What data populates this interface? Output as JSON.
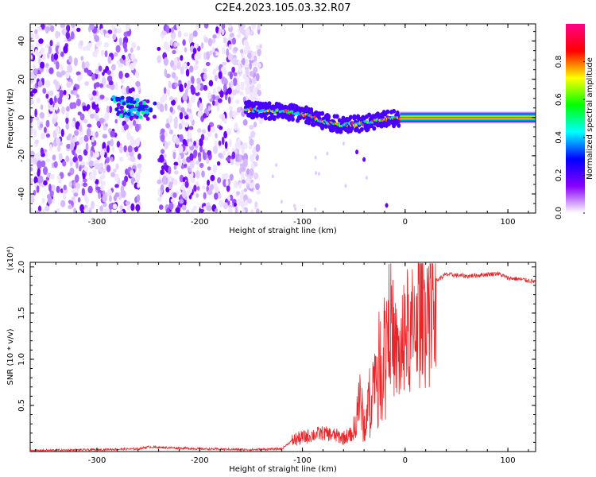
{
  "page_title": "C2E4.2023.105.03.32.R07",
  "chart_data": [
    {
      "type": "heatmap",
      "title": "C2E4.2023.105.03.32.R07",
      "xlabel": "Height of straight line (km)",
      "ylabel": "Frequency (Hz)",
      "xlim": [
        -365,
        127
      ],
      "ylim": [
        -50,
        49
      ],
      "x_ticks": [
        -300,
        -200,
        -100,
        0,
        100
      ],
      "y_ticks": [
        -40,
        -20,
        0,
        20,
        40
      ],
      "colorbar": {
        "label": "Normalized spectral amplitude",
        "range": [
          0,
          1
        ],
        "ticks": [
          "0.0",
          "0.2",
          "0.4",
          "0.6",
          "0.8"
        ],
        "colors": [
          "#ffffff",
          "#8800ff",
          "#0000ff",
          "#00ffff",
          "#00ff00",
          "#ffff00",
          "#ff0000",
          "#ff0088"
        ]
      },
      "signal_trace": [
        {
          "x": -280,
          "y": 6
        },
        {
          "x": -260,
          "y": 5
        },
        {
          "x": -245,
          "y": 3
        },
        {
          "x": -150,
          "y": 4
        },
        {
          "x": -120,
          "y": 3
        },
        {
          "x": -100,
          "y": 2
        },
        {
          "x": -80,
          "y": -2
        },
        {
          "x": -60,
          "y": -4
        },
        {
          "x": -40,
          "y": -3
        },
        {
          "x": -20,
          "y": -1
        },
        {
          "x": 0,
          "y": 0
        },
        {
          "x": 127,
          "y": 0
        }
      ]
    },
    {
      "type": "line",
      "xlabel": "Height of straight line (km)",
      "ylabel": "SNR (10 * v/v)",
      "y_multiplier": "(x10⁴)",
      "xlim": [
        -365,
        127
      ],
      "ylim": [
        0,
        2.05
      ],
      "x_ticks": [
        -300,
        -200,
        -100,
        0,
        100
      ],
      "y_ticks": [
        "0.5",
        "1.0",
        "1.5",
        "2.0"
      ],
      "series": [
        {
          "color": "#e8272a",
          "x": [
            -365,
            -300,
            -260,
            -250,
            -200,
            -150,
            -120,
            -110,
            -100,
            -90,
            -80,
            -70,
            -60,
            -50,
            -45,
            -40,
            -30,
            -20,
            -15,
            -10,
            -5,
            0,
            5,
            10,
            20,
            30,
            40,
            60,
            80,
            90,
            100,
            110,
            127
          ],
          "y": [
            0.01,
            0.02,
            0.03,
            0.05,
            0.03,
            0.02,
            0.03,
            0.12,
            0.15,
            0.18,
            0.2,
            0.18,
            0.15,
            0.2,
            0.6,
            0.3,
            0.8,
            1.2,
            1.5,
            1.1,
            1.0,
            1.4,
            1.2,
            1.5,
            1.7,
            1.85,
            1.92,
            1.9,
            1.92,
            1.93,
            1.88,
            1.87,
            1.84
          ]
        }
      ]
    }
  ],
  "colors": {
    "line": "#e8272a"
  }
}
